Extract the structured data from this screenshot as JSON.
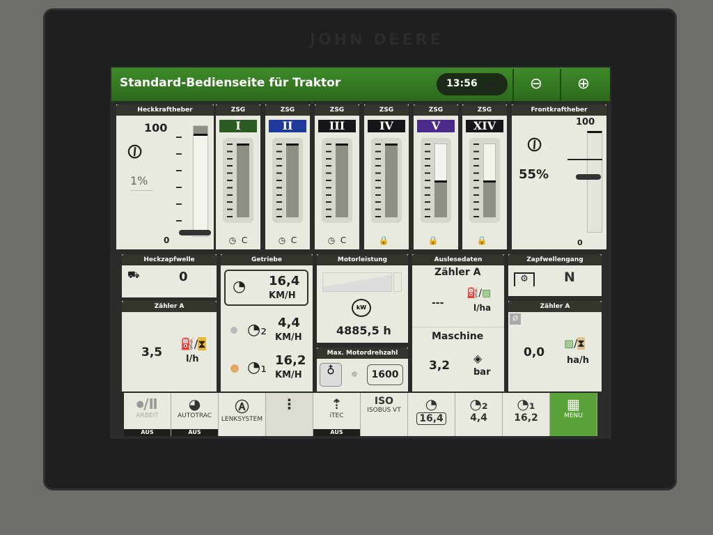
{
  "bezel": {
    "brand": "JOHN DEERE"
  },
  "header": {
    "title": "Standard-Bedienseite für Traktor",
    "time": "13:56",
    "cloud_icon": "cloud-sync-icon",
    "back_icon": "arrow-left-icon",
    "forward_icon": "arrow-right-icon"
  },
  "colors": {
    "header_green": "#3f8a2a",
    "menu_green": "#5aa33a",
    "panel_bg": "#e9eadf",
    "title_bar": "#34352d"
  },
  "rear_hitch": {
    "title": "Heckkraftheber",
    "scale_max": "100",
    "scale_min": "0",
    "value": "1%"
  },
  "front_hitch": {
    "title": "Frontkraftheber",
    "scale_max": "100",
    "scale_min": "0",
    "value": "55%"
  },
  "scv": [
    {
      "title": "ZSG",
      "label": "I",
      "color": "#2b5a22",
      "level": 1.0,
      "foot": "C",
      "foot_icon": "timer-icon"
    },
    {
      "title": "ZSG",
      "label": "II",
      "color": "#1f3a9a",
      "level": 1.0,
      "foot": "C",
      "foot_icon": "timer-icon"
    },
    {
      "title": "ZSG",
      "label": "III",
      "color": "#15161a",
      "level": 1.0,
      "foot": "C",
      "foot_icon": "timer-icon"
    },
    {
      "title": "ZSG",
      "label": "IV",
      "color": "#15161a",
      "level": 1.0,
      "foot": "",
      "foot_icon": "lock-icon"
    },
    {
      "title": "ZSG",
      "label": "V",
      "color": "#4a2a88",
      "level": 0.5,
      "foot": "",
      "foot_icon": "lock-icon"
    },
    {
      "title": "ZSG",
      "label": "XIV",
      "color": "#15161a",
      "level": 0.5,
      "foot": "",
      "foot_icon": "lock-icon"
    }
  ],
  "rear_pto": {
    "title": "Heckzapfwelle",
    "value": "0"
  },
  "counter_left": {
    "title": "Zähler A",
    "value": "3,5",
    "unit": "l/h"
  },
  "transmission": {
    "title": "Getriebe",
    "speed": "16,4",
    "speed_unit": "KM/H",
    "set2": "4,4",
    "set2_unit": "KM/H",
    "set1": "16,2",
    "set1_unit": "KM/H"
  },
  "engine": {
    "title": "Motorleistung",
    "hours": "4885,5 h",
    "kw_label": "kW"
  },
  "max_rpm": {
    "title": "Max. Motordrehzahl",
    "value": "1600"
  },
  "readout": {
    "title": "Auslesedaten",
    "counter": "Zähler A",
    "value": "---",
    "unit": "l/ha",
    "machine": "Maschine",
    "pressure": "3,2",
    "pressure_unit": "bar"
  },
  "pto_gear": {
    "title": "Zapfwellengang",
    "value": "N"
  },
  "counter_right": {
    "title": "Zähler A",
    "avg": "Ø",
    "value": "0,0",
    "unit": "ha/h"
  },
  "bottom": [
    {
      "label": "ARBEIT",
      "status": "AUS"
    },
    {
      "label": "AUTOTRAC",
      "status": "AUS"
    },
    {
      "label": "LENKSYSTEM",
      "status": ""
    },
    {
      "label": "",
      "status": ""
    },
    {
      "label": "iTEC",
      "status": "AUS"
    },
    {
      "label": "ISOBUS VT",
      "status": ""
    },
    {
      "label": "16,4",
      "status": ""
    },
    {
      "label": "4,4",
      "status": ""
    },
    {
      "label": "16,2",
      "status": ""
    },
    {
      "label": "MENU",
      "status": ""
    }
  ]
}
